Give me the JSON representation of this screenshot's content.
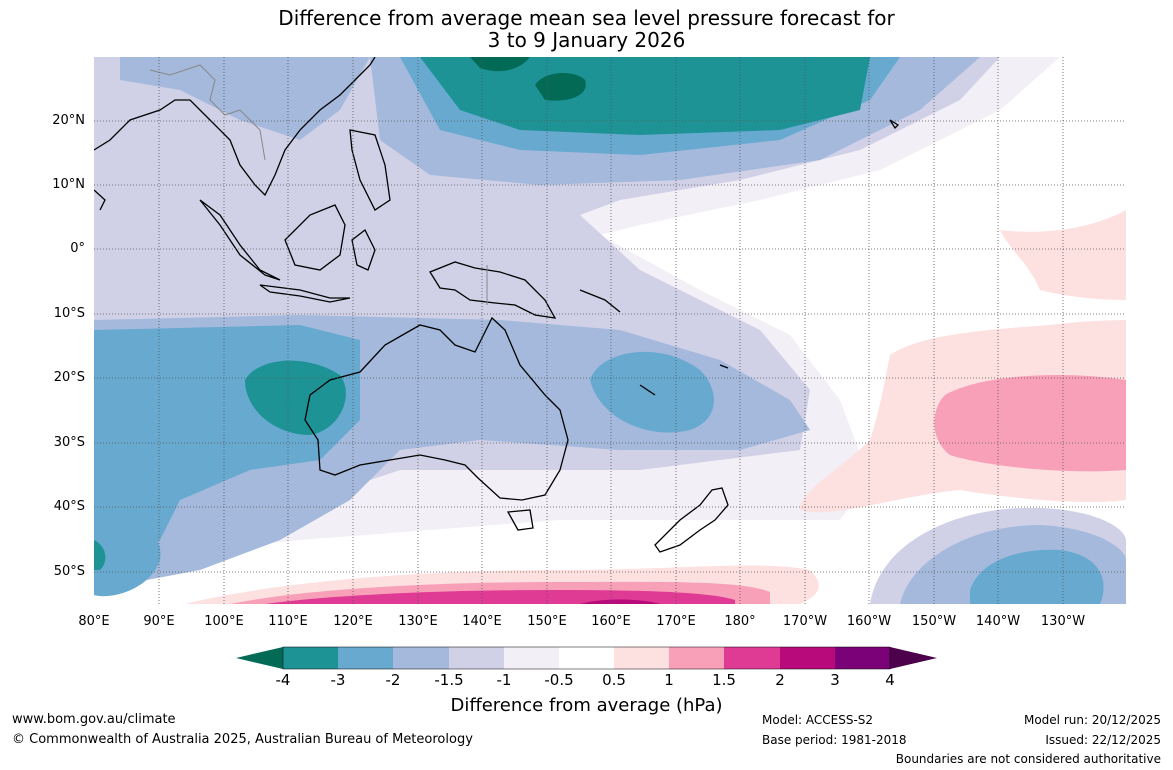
{
  "title": {
    "line1": "Difference from average mean sea level pressure forecast for",
    "line2": "3 to 9 January 2026"
  },
  "map": {
    "region": "Australia and surrounding Pacific and Indian Ocean region",
    "lat_labels": [
      "20°N",
      "10°N",
      "0°",
      "10°S",
      "20°S",
      "30°S",
      "40°S",
      "50°S"
    ],
    "lon_labels": [
      "80°E",
      "90°E",
      "100°E",
      "110°E",
      "120°E",
      "130°E",
      "140°E",
      "150°E",
      "160°E",
      "170°E",
      "180°",
      "170°W",
      "160°W",
      "150°W",
      "140°W",
      "130°W"
    ]
  },
  "legend": {
    "title": "Difference from average (hPa)",
    "ticks": [
      "-4",
      "-3",
      "-2",
      "-1.5",
      "-1",
      "-0.5",
      "0.5",
      "1",
      "1.5",
      "2",
      "3",
      "4"
    ],
    "colors": [
      "#036b55",
      "#1d9396",
      "#67a9cf",
      "#a4b9dc",
      "#d0d1e7",
      "#f2eff6",
      "#ffffff",
      "#fde0e0",
      "#f9a0b9",
      "#df3a94",
      "#b90a7c",
      "#7a0177",
      "#4d004b"
    ]
  },
  "footer": {
    "website": "www.bom.gov.au/climate",
    "copyright": "© Commonwealth of Australia 2025, Australian Bureau of Meteorology",
    "model": "Model: ACCESS-S2",
    "base_period": "Base period: 1981-2018",
    "model_run": "Model run: 20/12/2025",
    "issued": "Issued: 22/12/2025",
    "boundaries": "Boundaries are not considered authoritative"
  }
}
